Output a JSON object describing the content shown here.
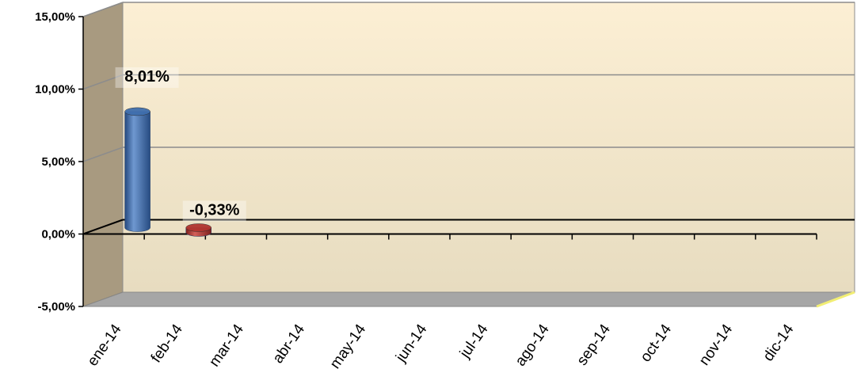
{
  "chart_data": {
    "type": "bar",
    "categories": [
      "ene-14",
      "feb-14",
      "mar-14",
      "abr-14",
      "may-14",
      "jun-14",
      "jul-14",
      "ago-14",
      "sep-14",
      "oct-14",
      "nov-14",
      "dic-14"
    ],
    "series": [
      {
        "values": [
          8.01,
          -0.33,
          null,
          null,
          null,
          null,
          null,
          null,
          null,
          null,
          null,
          null
        ]
      }
    ],
    "data_labels": [
      "8,01%",
      "-0,33%",
      "",
      "",
      "",
      "",
      "",
      "",
      "",
      "",
      "",
      ""
    ],
    "bar_colors": [
      "#3f6ead",
      "#b03530"
    ],
    "yticks": [
      -5,
      0,
      5,
      10,
      15
    ],
    "ytick_labels": [
      "-5,00%",
      "0,00%",
      "5,00%",
      "10,00%",
      "15,00%"
    ],
    "ylim": [
      -5,
      15
    ],
    "grid": true,
    "legend": "none",
    "title": "",
    "xlabel": "",
    "ylabel": "",
    "colors": {
      "wall_top": "#fcefd4",
      "wall_bottom": "#e7dcc0",
      "side_wall": "#a89a80",
      "floor": "#a6a6a6",
      "gridline": "#8c8c8c"
    }
  }
}
